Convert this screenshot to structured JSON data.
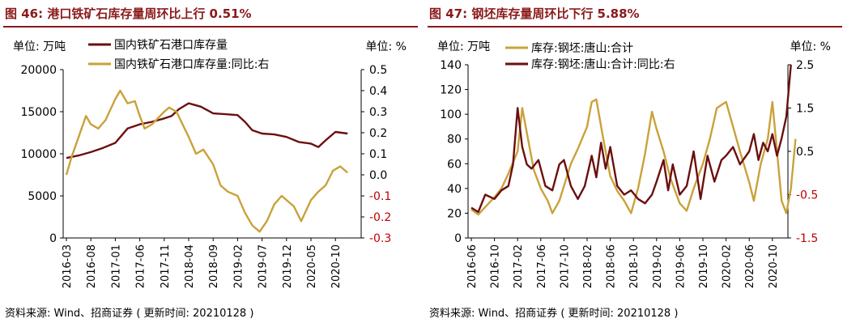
{
  "charts": [
    {
      "title": "图 46: 港口铁矿石库存量周环比上行 0.51%",
      "unit_left": "单位: 万吨",
      "unit_right": "单位: %",
      "source": "资料来源: Wind、招商证券 ( 更新时间: 20210128 )",
      "colors": {
        "primary": "#6b0f0f",
        "secondary": "#c9a23a"
      }
    },
    {
      "title": "图 47: 钢坯库存量周环比下行 5.88%",
      "unit_left": "单位: 万吨",
      "unit_right": "单位: %",
      "source": "资料来源: Wind、招商证券 ( 更新时间: 20210128 )",
      "colors": {
        "primary": "#c9a23a",
        "secondary": "#6b0f0f"
      }
    }
  ],
  "chart_data": [
    {
      "type": "line",
      "x_tick_labels": [
        "2016-03",
        "2016-08",
        "2017-01",
        "2017-06",
        "2017-11",
        "2018-04",
        "2018-09",
        "2019-02",
        "2019-07",
        "2019-12",
        "2020-05",
        "2020-10"
      ],
      "y_left_ticks": [
        "20000",
        "15000",
        "10000",
        "5000",
        "0"
      ],
      "y_right_ticks": [
        "0.5",
        "0.4",
        "0.3",
        "0.2",
        "0.1",
        "0.0",
        "-0.1",
        "-0.2",
        "-0.3"
      ],
      "ylim_left": [
        0,
        20000
      ],
      "ylim_right": [
        -0.3,
        0.5
      ],
      "series": [
        {
          "name": "国内铁矿石港口库存量",
          "axis": "left",
          "points": [
            [
              0,
              9500
            ],
            [
              0.5,
              9800
            ],
            [
              1,
              10200
            ],
            [
              1.5,
              10700
            ],
            [
              2,
              11300
            ],
            [
              2.5,
              13000
            ],
            [
              3,
              13500
            ],
            [
              3.5,
              13800
            ],
            [
              4,
              14200
            ],
            [
              4.3,
              14500
            ],
            [
              4.6,
              15300
            ],
            [
              5,
              16000
            ],
            [
              5.5,
              15600
            ],
            [
              6,
              14800
            ],
            [
              6.5,
              14700
            ],
            [
              7,
              14600
            ],
            [
              7.3,
              13800
            ],
            [
              7.6,
              12800
            ],
            [
              8,
              12400
            ],
            [
              8.5,
              12300
            ],
            [
              9,
              12000
            ],
            [
              9.5,
              11400
            ],
            [
              10,
              11200
            ],
            [
              10.3,
              10800
            ],
            [
              10.6,
              11600
            ],
            [
              11,
              12600
            ],
            [
              11.5,
              12400
            ]
          ]
        },
        {
          "name": "国内铁矿石港口库存量:同比:右",
          "axis": "right",
          "points": [
            [
              0,
              0.0
            ],
            [
              0.2,
              0.08
            ],
            [
              0.5,
              0.18
            ],
            [
              0.8,
              0.28
            ],
            [
              1,
              0.24
            ],
            [
              1.3,
              0.22
            ],
            [
              1.6,
              0.26
            ],
            [
              2,
              0.36
            ],
            [
              2.2,
              0.4
            ],
            [
              2.5,
              0.34
            ],
            [
              2.8,
              0.35
            ],
            [
              3,
              0.28
            ],
            [
              3.2,
              0.22
            ],
            [
              3.5,
              0.24
            ],
            [
              4,
              0.3
            ],
            [
              4.2,
              0.32
            ],
            [
              4.5,
              0.3
            ],
            [
              5,
              0.18
            ],
            [
              5.3,
              0.1
            ],
            [
              5.6,
              0.12
            ],
            [
              6,
              0.05
            ],
            [
              6.3,
              -0.05
            ],
            [
              6.6,
              -0.08
            ],
            [
              7,
              -0.1
            ],
            [
              7.3,
              -0.18
            ],
            [
              7.6,
              -0.24
            ],
            [
              7.9,
              -0.27
            ],
            [
              8.2,
              -0.22
            ],
            [
              8.5,
              -0.14
            ],
            [
              8.8,
              -0.1
            ],
            [
              9,
              -0.12
            ],
            [
              9.3,
              -0.15
            ],
            [
              9.6,
              -0.22
            ],
            [
              10,
              -0.12
            ],
            [
              10.3,
              -0.08
            ],
            [
              10.6,
              -0.05
            ],
            [
              10.9,
              0.02
            ],
            [
              11.2,
              0.04
            ],
            [
              11.5,
              0.01
            ]
          ]
        }
      ]
    },
    {
      "type": "line",
      "x_tick_labels": [
        "2016-06",
        "2016-10",
        "2017-02",
        "2017-06",
        "2017-10",
        "2018-02",
        "2018-06",
        "2018-10",
        "2019-02",
        "2019-06",
        "2019-10",
        "2020-02",
        "2020-06",
        "2020-10"
      ],
      "y_left_ticks": [
        "140",
        "120",
        "100",
        "80",
        "60",
        "40",
        "20",
        "0"
      ],
      "y_right_ticks": [
        "2.5",
        "1.5",
        "0.5",
        "-0.5",
        "-1.5"
      ],
      "ylim_left": [
        0,
        140
      ],
      "ylim_right": [
        -1.5,
        2.5
      ],
      "series": [
        {
          "name": "库存:钢坯:唐山:合计",
          "axis": "left",
          "points": [
            [
              0,
              23
            ],
            [
              0.3,
              19
            ],
            [
              0.6,
              25
            ],
            [
              1,
              33
            ],
            [
              1.3,
              40
            ],
            [
              1.6,
              52
            ],
            [
              2,
              70
            ],
            [
              2.2,
              105
            ],
            [
              2.4,
              85
            ],
            [
              2.7,
              55
            ],
            [
              3,
              40
            ],
            [
              3.3,
              30
            ],
            [
              3.5,
              20
            ],
            [
              3.8,
              30
            ],
            [
              4,
              42
            ],
            [
              4.3,
              60
            ],
            [
              4.6,
              72
            ],
            [
              5,
              90
            ],
            [
              5.2,
              110
            ],
            [
              5.4,
              112
            ],
            [
              5.7,
              80
            ],
            [
              6,
              50
            ],
            [
              6.3,
              38
            ],
            [
              6.6,
              30
            ],
            [
              6.9,
              20
            ],
            [
              7.2,
              40
            ],
            [
              7.5,
              68
            ],
            [
              7.8,
              102
            ],
            [
              8,
              88
            ],
            [
              8.3,
              70
            ],
            [
              8.6,
              48
            ],
            [
              9,
              28
            ],
            [
              9.3,
              22
            ],
            [
              9.6,
              40
            ],
            [
              10,
              60
            ],
            [
              10.3,
              80
            ],
            [
              10.6,
              105
            ],
            [
              11,
              110
            ],
            [
              11.3,
              90
            ],
            [
              11.6,
              70
            ],
            [
              12,
              45
            ],
            [
              12.2,
              30
            ],
            [
              12.5,
              60
            ],
            [
              12.8,
              80
            ],
            [
              13,
              110
            ],
            [
              13.2,
              70
            ],
            [
              13.4,
              30
            ],
            [
              13.6,
              20
            ],
            [
              13.8,
              40
            ],
            [
              14.0,
              80
            ]
          ]
        },
        {
          "name": "库存:钢坯:唐山:合计:同比:右",
          "axis": "right",
          "points": [
            [
              0,
              -0.8
            ],
            [
              0.3,
              -0.9
            ],
            [
              0.6,
              -0.5
            ],
            [
              1,
              -0.6
            ],
            [
              1.3,
              -0.4
            ],
            [
              1.6,
              -0.3
            ],
            [
              1.8,
              0.2
            ],
            [
              2,
              1.5
            ],
            [
              2.2,
              0.6
            ],
            [
              2.4,
              0.2
            ],
            [
              2.6,
              0.1
            ],
            [
              2.9,
              0.3
            ],
            [
              3.2,
              -0.3
            ],
            [
              3.5,
              -0.4
            ],
            [
              3.8,
              0.2
            ],
            [
              4,
              0.3
            ],
            [
              4.3,
              -0.3
            ],
            [
              4.6,
              -0.6
            ],
            [
              4.9,
              -0.3
            ],
            [
              5.2,
              0.4
            ],
            [
              5.4,
              -0.1
            ],
            [
              5.6,
              0.7
            ],
            [
              5.8,
              0.1
            ],
            [
              6,
              0.6
            ],
            [
              6.3,
              -0.3
            ],
            [
              6.6,
              -0.5
            ],
            [
              6.9,
              -0.4
            ],
            [
              7.2,
              -0.6
            ],
            [
              7.5,
              -0.7
            ],
            [
              7.8,
              -0.5
            ],
            [
              8,
              -0.2
            ],
            [
              8.3,
              0.3
            ],
            [
              8.5,
              -0.4
            ],
            [
              8.7,
              0.2
            ],
            [
              9,
              -0.5
            ],
            [
              9.3,
              -0.3
            ],
            [
              9.6,
              0.5
            ],
            [
              9.9,
              -0.6
            ],
            [
              10.2,
              0.4
            ],
            [
              10.5,
              -0.2
            ],
            [
              10.8,
              0.3
            ],
            [
              11,
              0.4
            ],
            [
              11.3,
              0.6
            ],
            [
              11.6,
              0.2
            ],
            [
              12,
              0.5
            ],
            [
              12.2,
              0.9
            ],
            [
              12.4,
              0.3
            ],
            [
              12.6,
              0.7
            ],
            [
              12.8,
              0.5
            ],
            [
              13,
              0.9
            ],
            [
              13.2,
              0.4
            ],
            [
              13.4,
              0.8
            ],
            [
              13.6,
              1.3
            ],
            [
              13.8,
              2.5
            ]
          ]
        }
      ]
    }
  ]
}
